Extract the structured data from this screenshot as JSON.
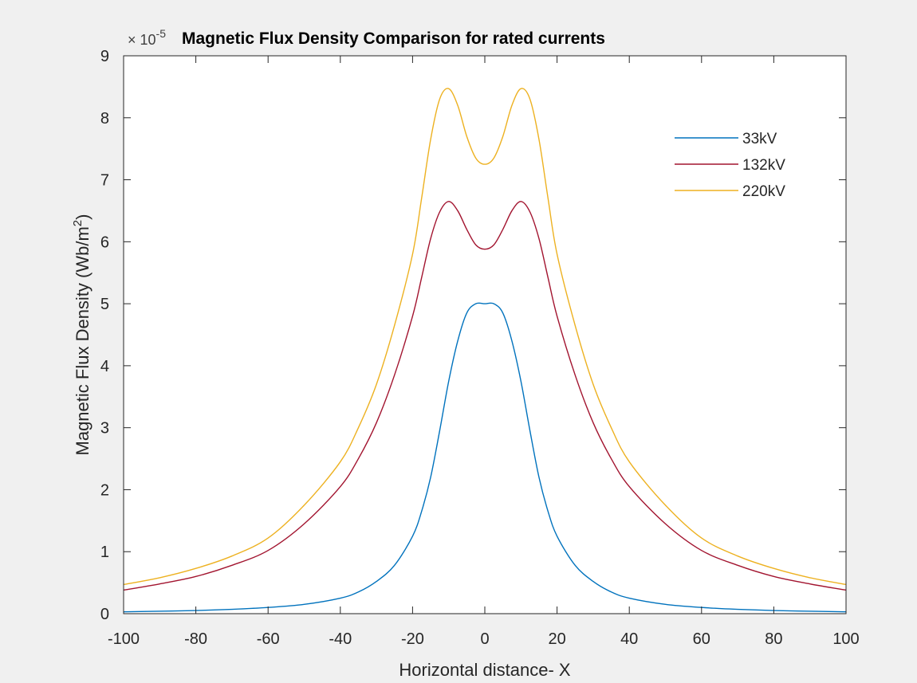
{
  "chart_data": {
    "type": "line",
    "title": "Magnetic Flux Density Comparison for rated currents",
    "xlabel": "Horizontal distance- X",
    "ylabel": "Magnetic Flux Density (Wb/m",
    "ylabel_sup": "2",
    "ylabel_end": ")",
    "y_exponent": {
      "base": "× 10",
      "power": "-5"
    },
    "xlim": [
      -100,
      100
    ],
    "ylim": [
      0,
      9
    ],
    "x_ticks": [
      -100,
      -80,
      -60,
      -40,
      -20,
      0,
      20,
      40,
      60,
      80,
      100
    ],
    "y_ticks": [
      0,
      1,
      2,
      3,
      4,
      5,
      6,
      7,
      8,
      9
    ],
    "grid": false,
    "legend_position": "top-right",
    "x": [
      -100,
      -90,
      -80,
      -70,
      -60,
      -50,
      -40,
      -35,
      -30,
      -25,
      -20,
      -17.5,
      -15,
      -12.5,
      -10,
      -7.5,
      -5,
      -2.5,
      0,
      2.5,
      5,
      7.5,
      10,
      12.5,
      15,
      17.5,
      20,
      25,
      30,
      35,
      40,
      50,
      60,
      70,
      80,
      90,
      100
    ],
    "series": [
      {
        "name": "33kV",
        "color": "#0072BD",
        "values": [
          0.03,
          0.04,
          0.05,
          0.07,
          0.1,
          0.15,
          0.25,
          0.35,
          0.52,
          0.78,
          1.25,
          1.65,
          2.2,
          2.95,
          3.75,
          4.4,
          4.85,
          5.0,
          5.0,
          5.0,
          4.85,
          4.4,
          3.75,
          2.95,
          2.2,
          1.65,
          1.25,
          0.78,
          0.52,
          0.35,
          0.25,
          0.15,
          0.1,
          0.07,
          0.05,
          0.04,
          0.03
        ]
      },
      {
        "name": "132kV",
        "color": "#A2142F",
        "values": [
          0.38,
          0.48,
          0.6,
          0.78,
          1.02,
          1.45,
          2.05,
          2.5,
          3.08,
          3.85,
          4.8,
          5.42,
          6.05,
          6.48,
          6.65,
          6.5,
          6.2,
          5.95,
          5.88,
          5.95,
          6.2,
          6.5,
          6.65,
          6.48,
          6.05,
          5.42,
          4.8,
          3.85,
          3.08,
          2.5,
          2.05,
          1.45,
          1.02,
          0.78,
          0.6,
          0.48,
          0.38
        ]
      },
      {
        "name": "220kV",
        "color": "#EDB120",
        "values": [
          0.47,
          0.58,
          0.73,
          0.93,
          1.22,
          1.75,
          2.45,
          3.0,
          3.7,
          4.65,
          5.8,
          6.7,
          7.65,
          8.3,
          8.47,
          8.2,
          7.7,
          7.35,
          7.25,
          7.35,
          7.7,
          8.2,
          8.47,
          8.3,
          7.65,
          6.7,
          5.8,
          4.65,
          3.7,
          3.0,
          2.45,
          1.75,
          1.22,
          0.93,
          0.73,
          0.58,
          0.47
        ]
      }
    ]
  }
}
